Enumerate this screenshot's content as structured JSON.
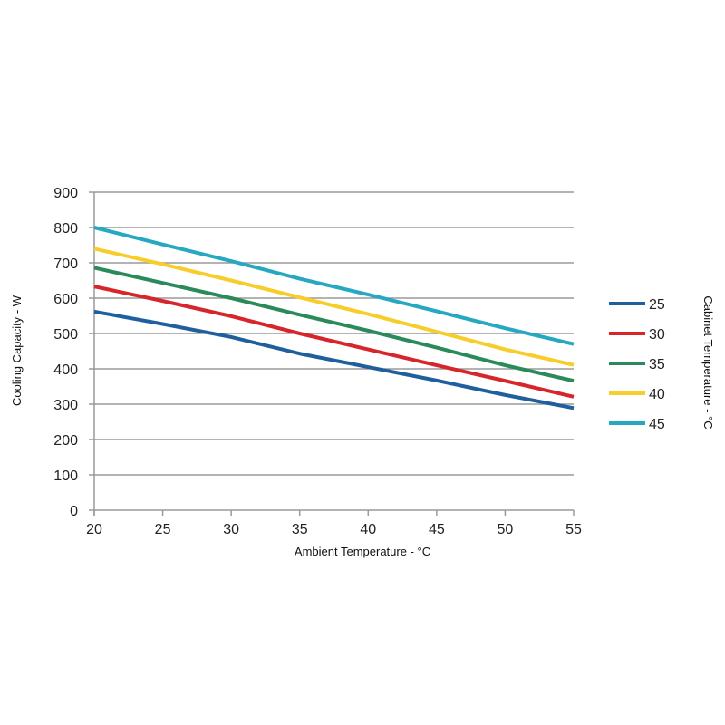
{
  "chart_data": {
    "type": "line",
    "title": "",
    "xlabel": "Ambient Temperature - °C",
    "ylabel": "Cooling Capacity - W",
    "legend_title": "Cabinet Temperature - °C",
    "legend_position": "right",
    "grid": true,
    "xlim": [
      20,
      55
    ],
    "ylim": [
      0,
      900
    ],
    "x": [
      20,
      25,
      30,
      35,
      40,
      45,
      50,
      55
    ],
    "xticks": [
      "20",
      "25",
      "30",
      "35",
      "40",
      "45",
      "50",
      "55"
    ],
    "yticks": [
      "0",
      "100",
      "200",
      "300",
      "400",
      "500",
      "600",
      "700",
      "800",
      "900"
    ],
    "series": [
      {
        "name": "25",
        "color": "#1f5f9e",
        "values": [
          562,
          527,
          490,
          443,
          405,
          367,
          326,
          289
        ]
      },
      {
        "name": "30",
        "color": "#d7262b",
        "values": [
          633,
          592,
          549,
          500,
          455,
          410,
          366,
          321
        ]
      },
      {
        "name": "35",
        "color": "#2a8a5a",
        "values": [
          686,
          643,
          600,
          553,
          508,
          460,
          410,
          366
        ]
      },
      {
        "name": "40",
        "color": "#f6cd2a",
        "values": [
          740,
          696,
          650,
          602,
          555,
          505,
          455,
          411
        ]
      },
      {
        "name": "45",
        "color": "#25a8c0",
        "values": [
          800,
          752,
          705,
          655,
          610,
          563,
          515,
          470
        ]
      }
    ]
  }
}
